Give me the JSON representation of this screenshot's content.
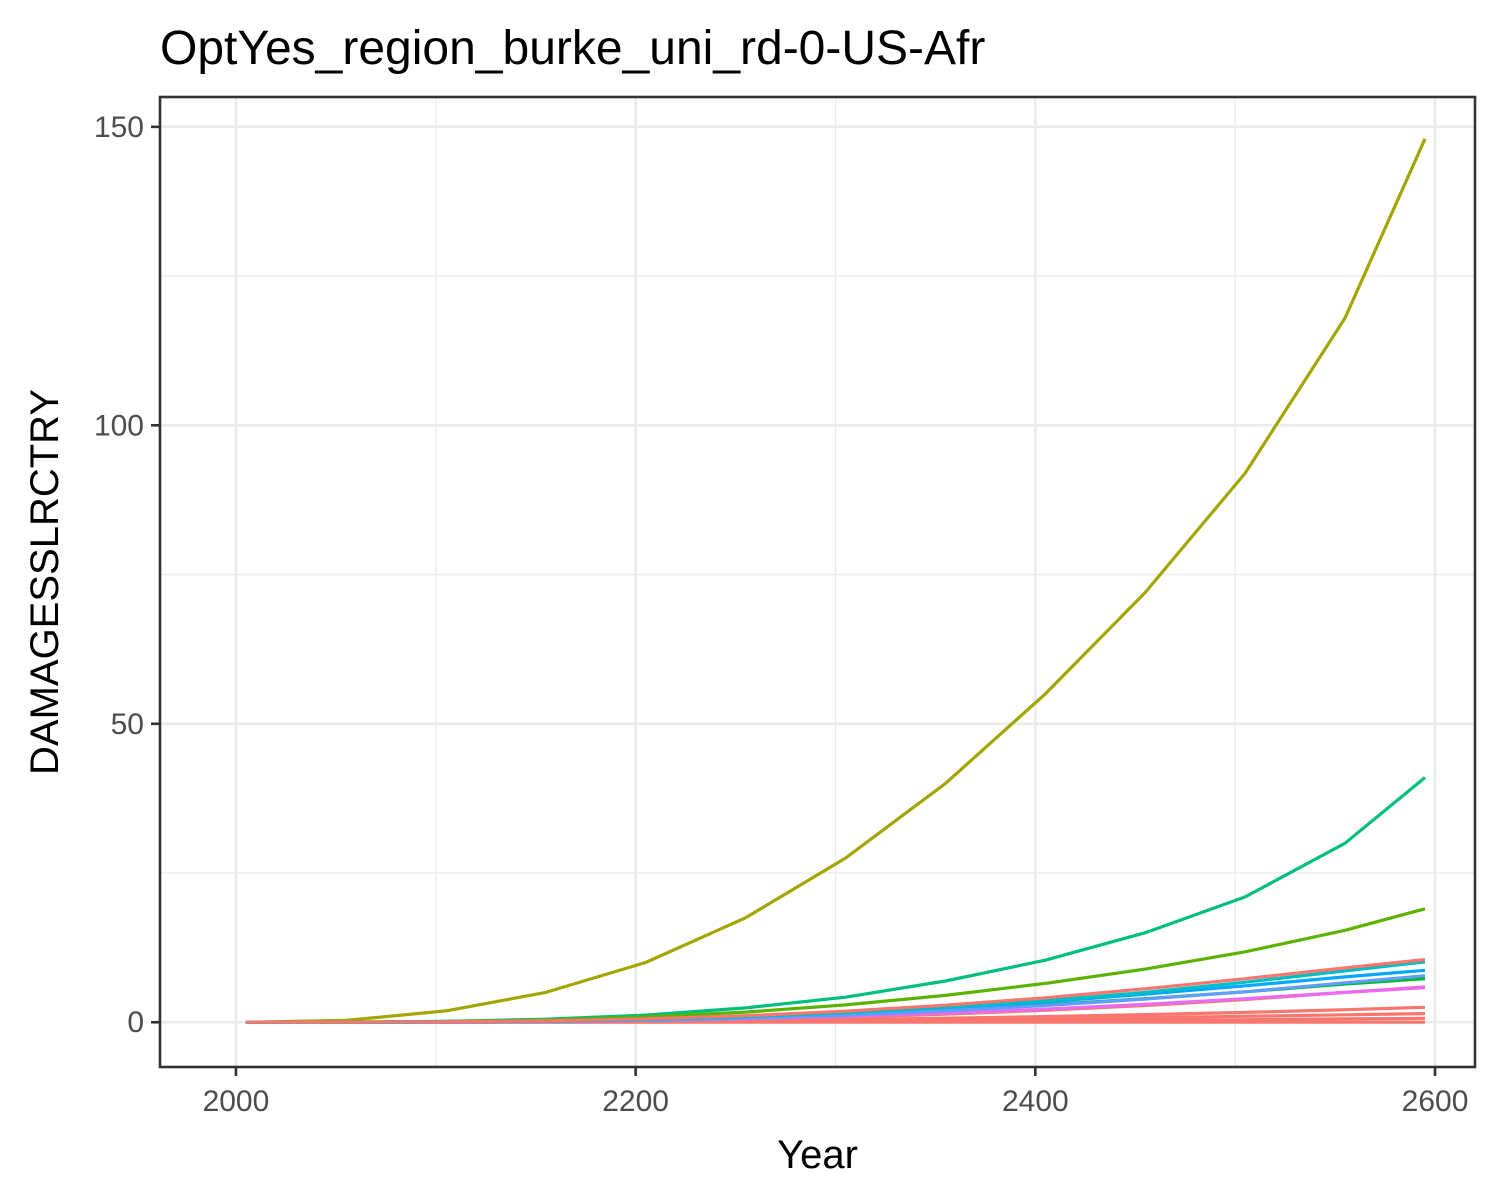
{
  "chart_data": {
    "type": "line",
    "title": "OptYes_region_burke_uni_rd-0-US-Afr",
    "xlabel": "Year",
    "ylabel": "DAMAGESSLRCTRY",
    "xlim": [
      1962,
      2620
    ],
    "ylim": [
      -7.5,
      155
    ],
    "x_ticks": [
      2000,
      2200,
      2400,
      2600
    ],
    "y_ticks": [
      0,
      50,
      100,
      150
    ],
    "grid": true,
    "legend": "none",
    "x": [
      2005,
      2055,
      2105,
      2155,
      2205,
      2255,
      2305,
      2355,
      2405,
      2455,
      2505,
      2555,
      2595
    ],
    "series": [
      {
        "color": "#F8766D",
        "values": [
          0,
          0,
          0,
          0,
          0,
          0,
          0,
          0,
          0,
          0,
          0,
          0,
          0
        ]
      },
      {
        "color": "#F8766D",
        "values": [
          0,
          0,
          0,
          0.02,
          0.04,
          0.08,
          0.12,
          0.18,
          0.25,
          0.33,
          0.42,
          0.55,
          0.65
        ]
      },
      {
        "color": "#F8766D",
        "values": [
          0,
          0,
          0.01,
          0.04,
          0.1,
          0.18,
          0.28,
          0.42,
          0.58,
          0.78,
          1,
          1.25,
          1.45
        ]
      },
      {
        "color": "#F8766D",
        "values": [
          0,
          0,
          0.02,
          0.06,
          0.15,
          0.28,
          0.45,
          0.68,
          0.95,
          1.28,
          1.65,
          2.1,
          2.5
        ]
      },
      {
        "color": "#F8766D",
        "values": [
          0,
          0,
          0.03,
          0.1,
          0.24,
          0.48,
          0.85,
          1.35,
          2,
          2.8,
          3.8,
          5,
          5.9
        ]
      },
      {
        "color": "#E76BF3",
        "values": [
          0,
          0,
          0.03,
          0.12,
          0.3,
          0.6,
          1,
          1.55,
          2.2,
          3,
          3.95,
          5,
          5.8
        ]
      },
      {
        "color": "#A3A500",
        "values": [
          0,
          0.3,
          1.9,
          5,
          10,
          17.5,
          27.5,
          40,
          55,
          72,
          92,
          118,
          148
        ]
      },
      {
        "color": "#00BF7D",
        "values": [
          0,
          0.02,
          0.15,
          0.5,
          1.2,
          2.4,
          4.2,
          6.9,
          10.4,
          15,
          21,
          30,
          41
        ]
      },
      {
        "color": "#5BB300",
        "values": [
          0,
          0.02,
          0.12,
          0.38,
          0.88,
          1.7,
          2.9,
          4.5,
          6.5,
          8.9,
          11.8,
          15.4,
          19
        ]
      },
      {
        "color": "#00BA38",
        "values": [
          0,
          0,
          0.05,
          0.16,
          0.38,
          0.75,
          1.28,
          2,
          2.9,
          3.95,
          5.1,
          6.4,
          7.3
        ]
      },
      {
        "color": "#00A9FF",
        "values": [
          0,
          0,
          0.05,
          0.18,
          0.43,
          0.85,
          1.45,
          2.3,
          3.4,
          4.7,
          6.1,
          7.6,
          8.7
        ]
      },
      {
        "color": "#619CFF",
        "values": [
          0,
          0,
          0.04,
          0.14,
          0.35,
          0.7,
          1.2,
          1.9,
          2.8,
          3.9,
          5.1,
          6.6,
          7.8
        ]
      },
      {
        "color": "#00BFC4",
        "values": [
          0,
          0,
          0.06,
          0.2,
          0.48,
          0.95,
          1.6,
          2.5,
          3.6,
          5,
          6.7,
          8.6,
          10.1
        ]
      },
      {
        "color": "#F8766D",
        "values": [
          0,
          0.01,
          0.07,
          0.24,
          0.56,
          1.1,
          1.85,
          2.85,
          4.1,
          5.6,
          7.3,
          9.1,
          10.5
        ]
      }
    ]
  }
}
